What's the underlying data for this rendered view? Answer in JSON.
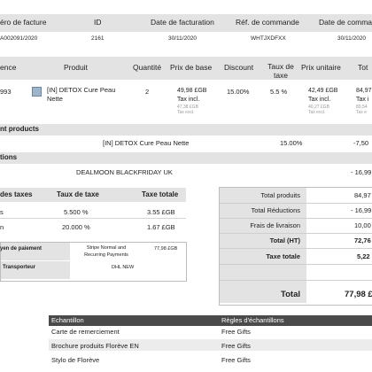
{
  "invoice_header": {
    "columns": [
      "éro de facture",
      "ID",
      "Date de facturation",
      "Réf. de commande",
      "Date de comman"
    ],
    "values": [
      "A002091/2020",
      "2161",
      "30/11/2020",
      "WHTJXDFXX",
      "30/11/2020"
    ]
  },
  "products_table": {
    "columns": [
      "ence",
      "Produit",
      "Quantité",
      "Prix de base",
      "Discount",
      "Taux de taxe",
      "Prix unitaire",
      "Tot"
    ],
    "row": {
      "reference": "993",
      "product": "[IN] DETOX Cure Peau Nette",
      "quantity": "2",
      "base_price": "49,98 £GB",
      "base_price_tax_label": "Tax incl.",
      "base_price_excl": "47,38 £GB",
      "base_price_excl_label": "Tax excl.",
      "discount": "15.00%",
      "tax_rate": "5.5 %",
      "unit_price": "42,49 £GB",
      "unit_price_tax_label": "Tax incl.",
      "unit_price_excl": "40,27 £GB",
      "unit_price_excl_label": "Tax excl.",
      "total": "84,97",
      "total_tax_label": "Tax i",
      "total_excl": "80,54",
      "total_excl_label": "Tax e"
    }
  },
  "discount_section": {
    "title": "nt products",
    "product": "[IN] DETOX Cure Peau Nette",
    "percent": "15.00%",
    "amount": "-7,50"
  },
  "promotions": {
    "title": "tions",
    "name": "DEALMOON BLACKFRIDAY UK",
    "amount": "- 16,99"
  },
  "tax_table": {
    "columns": [
      "des taxes",
      "Taux de taxe",
      "Taxe totale"
    ],
    "rows": [
      {
        "label": "s",
        "rate": "5.500 %",
        "total": "3.55 £GB"
      },
      {
        "label": "n",
        "rate": "20.000 %",
        "total": "1.67 £GB"
      }
    ]
  },
  "payment": {
    "label": "yen de paiement",
    "method": "Stripe Normal and Recurring Payments",
    "amount": "77,98 £GB",
    "carrier_label": "Transporteur",
    "carrier": "DHL NEW"
  },
  "totals": [
    {
      "label": "Total produits",
      "value": "84,97"
    },
    {
      "label": "Total Réductions",
      "value": "- 16,99"
    },
    {
      "label": "Frais de livraison",
      "value": "10,00"
    },
    {
      "label": "Total (HT)",
      "value": "72,76"
    },
    {
      "label": "Taxe totale",
      "value": "5,22"
    },
    {
      "label": "Total",
      "value": "77,98 £"
    }
  ],
  "samples": {
    "columns": [
      "Echantillon",
      "Règles d'échantillons"
    ],
    "rows": [
      {
        "name": "Carte de remerciement",
        "rule": "Free Gifts"
      },
      {
        "name": "Brochure produits Florève EN",
        "rule": "Free Gifts"
      },
      {
        "name": "Stylo de Florève",
        "rule": "Free Gifts"
      }
    ]
  },
  "colors": {
    "header_bg": "#e3e3e3",
    "dark_header": "#4a4a4a"
  }
}
